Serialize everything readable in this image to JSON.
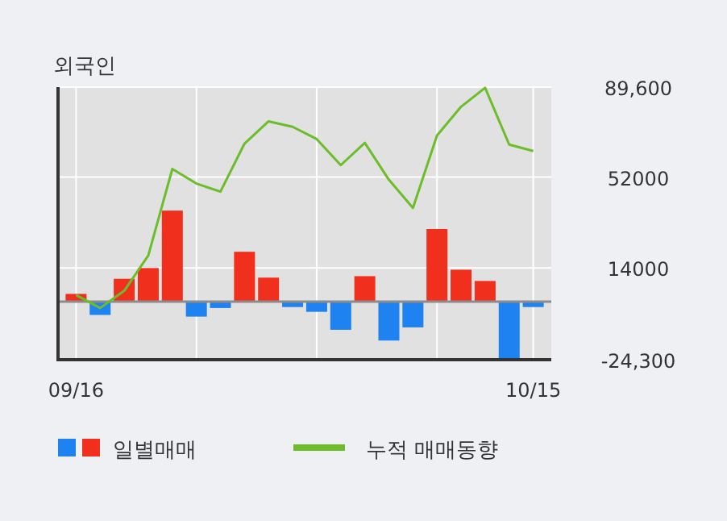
{
  "chart_data": {
    "type": "bar",
    "title": "외국인",
    "categories": [
      "09/16",
      null,
      null,
      null,
      null,
      null,
      null,
      null,
      null,
      null,
      null,
      null,
      null,
      null,
      null,
      null,
      null,
      null,
      null,
      "10/15"
    ],
    "series": [
      {
        "name": "일별매매",
        "values": [
          3200,
          -5600,
          9500,
          14000,
          38000,
          -6300,
          -2700,
          20800,
          10000,
          -2300,
          -4300,
          -11800,
          10600,
          -16300,
          -10800,
          30300,
          13300,
          8600,
          -24000,
          -2300
        ],
        "colors": [
          "#f0301c",
          "#1e82f0",
          "#f0301c",
          "#f0301c",
          "#f0301c",
          "#1e82f0",
          "#1e82f0",
          "#f0301c",
          "#f0301c",
          "#1e82f0",
          "#1e82f0",
          "#1e82f0",
          "#f0301c",
          "#1e82f0",
          "#1e82f0",
          "#f0301c",
          "#f0301c",
          "#f0301c",
          "#1e82f0",
          "#1e82f0"
        ]
      },
      {
        "name": "누적 매매동향",
        "type": "line",
        "color": "#6cbd2a",
        "values": [
          2700,
          -2700,
          4500,
          19200,
          55400,
          49300,
          45900,
          66000,
          75300,
          73000,
          67900,
          57000,
          66300,
          50900,
          39100,
          69400,
          81400,
          89300,
          65600,
          62900
        ]
      }
    ],
    "ylim": [
      -24300,
      89600
    ],
    "yticks": [
      {
        "value": 89600,
        "label": "89,600"
      },
      {
        "value": 52000,
        "label": "52000"
      },
      {
        "value": 14000,
        "label": "14000"
      },
      {
        "value": -24300,
        "label": "-24,300"
      }
    ],
    "grid": true,
    "legend": "bottom",
    "marker": "none"
  }
}
